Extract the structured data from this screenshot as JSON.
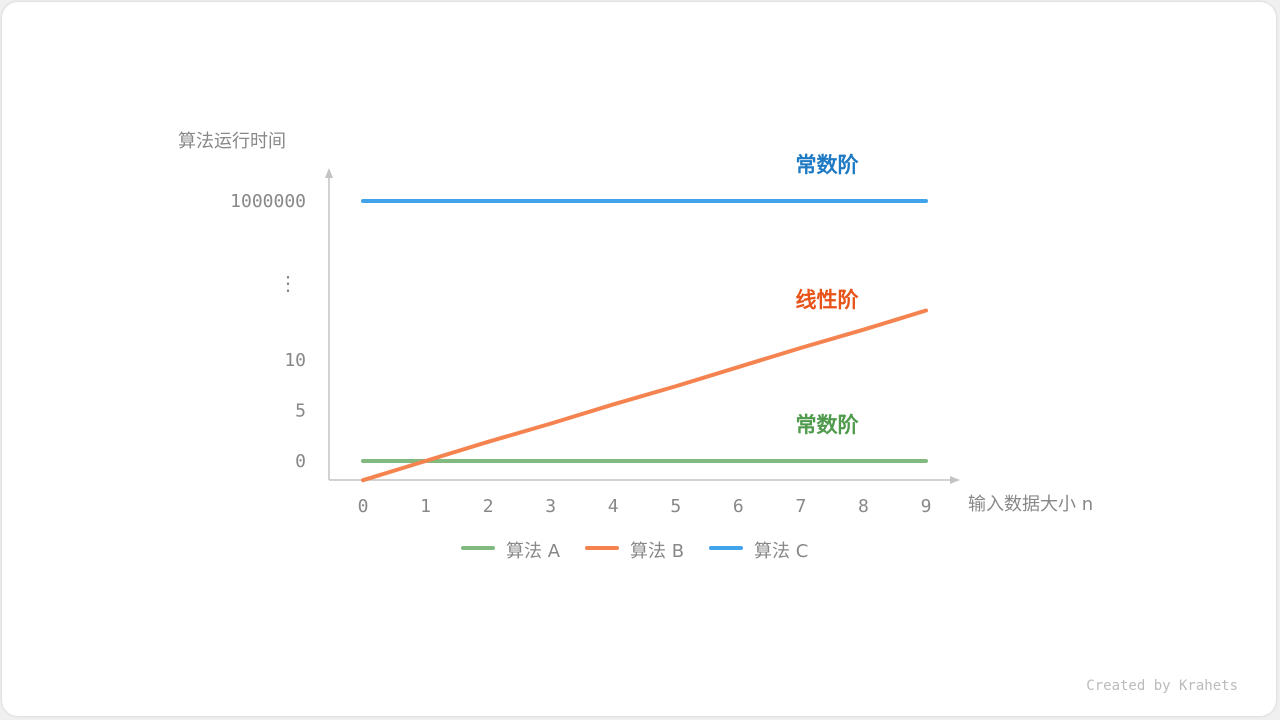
{
  "chart_data": {
    "type": "line",
    "title": "",
    "ylabel": "算法运行时间",
    "xlabel": "输入数据大小 n",
    "x": [
      0,
      1,
      2,
      3,
      4,
      5,
      6,
      7,
      8,
      9
    ],
    "x_tick_labels": [
      "0",
      "1",
      "2",
      "3",
      "4",
      "5",
      "6",
      "7",
      "8",
      "9"
    ],
    "y_tick_labels": [
      "0",
      "5",
      "10",
      "1000000"
    ],
    "y_axis_break": "⋮",
    "grid": false,
    "legend_placement": "bottom",
    "series": [
      {
        "name": "算法 A",
        "color": "#82b97f",
        "values": [
          0,
          0,
          0,
          0,
          0,
          0,
          0,
          0,
          0,
          0
        ],
        "annotation": "常数阶",
        "annotation_color": "#4f9a4c"
      },
      {
        "name": "算法 B",
        "color": "#f5834f",
        "values": [
          -1.9,
          0,
          1.9,
          3.7,
          5.6,
          7.4,
          9.3,
          11.2,
          13,
          14.9
        ],
        "annotation": "线性阶",
        "annotation_color": "#e8531a"
      },
      {
        "name": "算法 C",
        "color": "#41a3ea",
        "values": [
          1000000,
          1000000,
          1000000,
          1000000,
          1000000,
          1000000,
          1000000,
          1000000,
          1000000,
          1000000
        ],
        "annotation": "常数阶",
        "annotation_color": "#1f7ac4"
      }
    ]
  },
  "footer": {
    "credit": "Created by Krahets"
  }
}
